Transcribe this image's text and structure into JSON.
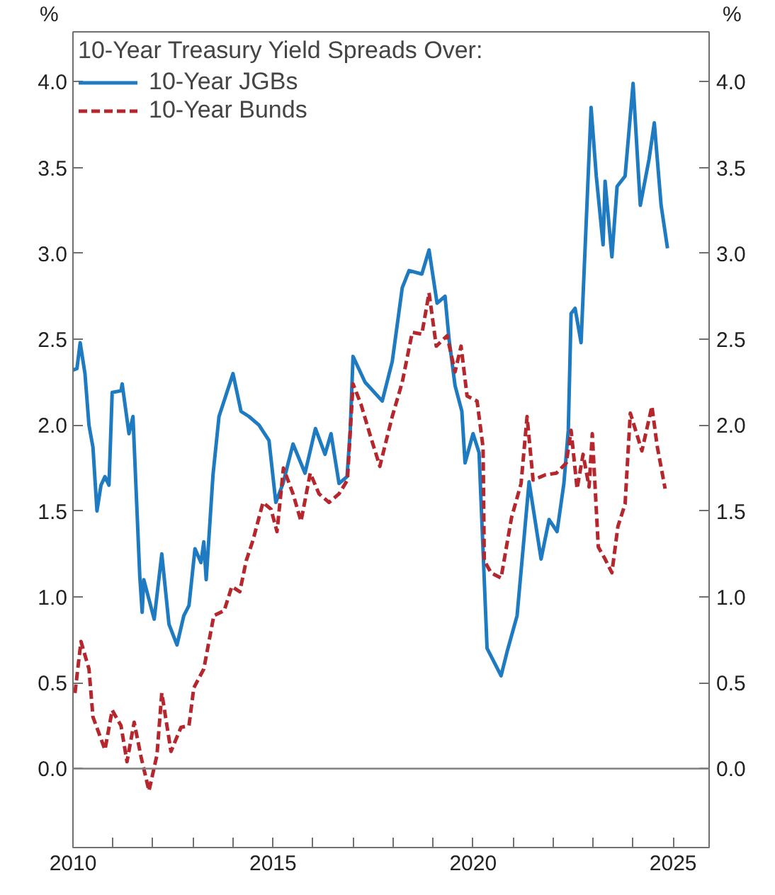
{
  "chart_data": {
    "type": "line",
    "legend_title": "10-Year Treasury Yield Spreads Over:",
    "ylabel": "%",
    "y2label": "%",
    "legend": "top left",
    "grid": false,
    "xlim": [
      2010,
      2025.9
    ],
    "xticks": [
      {
        "value": 2010,
        "label": "2010"
      },
      {
        "value": 2011,
        "label": null
      },
      {
        "value": 2012,
        "label": null
      },
      {
        "value": 2013,
        "label": null
      },
      {
        "value": 2014,
        "label": null
      },
      {
        "value": 2015,
        "label": "2015"
      },
      {
        "value": 2016,
        "label": null
      },
      {
        "value": 2017,
        "label": null
      },
      {
        "value": 2018,
        "label": null
      },
      {
        "value": 2019,
        "label": null
      },
      {
        "value": 2020,
        "label": "2020"
      },
      {
        "value": 2021,
        "label": null
      },
      {
        "value": 2022,
        "label": null
      },
      {
        "value": 2023,
        "label": null
      },
      {
        "value": 2024,
        "label": null
      },
      {
        "value": 2025,
        "label": "2025"
      }
    ],
    "ylim": [
      -0.46,
      4.29
    ],
    "yticks": [
      {
        "value": 0,
        "label": "0.0"
      },
      {
        "value": 0.5,
        "label": "0.5"
      },
      {
        "value": 1,
        "label": "1.0"
      },
      {
        "value": 1.5,
        "label": "1.5"
      },
      {
        "value": 2,
        "label": "2.0"
      },
      {
        "value": 2.5,
        "label": "2.5"
      },
      {
        "value": 3,
        "label": "3.0"
      },
      {
        "value": 3.5,
        "label": "3.5"
      },
      {
        "value": 4,
        "label": "4.0"
      }
    ],
    "y2lim": [
      -0.46,
      4.29
    ],
    "y2ticks": [
      {
        "value": 0,
        "label": "0.0"
      },
      {
        "value": 0.5,
        "label": "0.5"
      },
      {
        "value": 1,
        "label": "1.0"
      },
      {
        "value": 1.5,
        "label": "1.5"
      },
      {
        "value": 2,
        "label": "2.0"
      },
      {
        "value": 2.5,
        "label": "2.5"
      },
      {
        "value": 3,
        "label": "3.0"
      },
      {
        "value": 3.5,
        "label": "3.5"
      },
      {
        "value": 4,
        "label": "4.0"
      }
    ],
    "ref_lines": [
      {
        "axis": "y",
        "value": 0,
        "label": null,
        "color": "#808080"
      }
    ],
    "series": [
      {
        "name": "10-Year JGBs",
        "color": "#1f7bc1",
        "line_style": "solid",
        "x": [
          2010.0,
          2010.1,
          2010.18,
          2010.3,
          2010.4,
          2010.5,
          2010.6,
          2010.7,
          2010.8,
          2010.9,
          2010.98,
          2011.2,
          2011.23,
          2011.4,
          2011.5,
          2011.67,
          2011.73,
          2011.77,
          2012.03,
          2012.22,
          2012.4,
          2012.6,
          2012.77,
          2012.9,
          2013.05,
          2013.2,
          2013.27,
          2013.33,
          2013.5,
          2013.65,
          2014.0,
          2014.2,
          2014.4,
          2014.65,
          2014.9,
          2015.07,
          2015.25,
          2015.5,
          2015.8,
          2016.06,
          2016.3,
          2016.45,
          2016.65,
          2016.85,
          2016.93,
          2017.0,
          2017.3,
          2017.73,
          2017.98,
          2018.23,
          2018.4,
          2018.72,
          2018.9,
          2019.1,
          2019.3,
          2019.4,
          2019.55,
          2019.72,
          2019.8,
          2020.0,
          2020.15,
          2020.35,
          2020.7,
          2020.85,
          2021.1,
          2021.4,
          2021.7,
          2021.9,
          2022.1,
          2022.27,
          2022.38,
          2022.45,
          2022.55,
          2022.7,
          2022.95,
          2023.08,
          2023.25,
          2023.3,
          2023.47,
          2023.6,
          2023.8,
          2024.0,
          2024.18,
          2024.4,
          2024.53,
          2024.7,
          2024.86
        ],
        "values": [
          2.32,
          2.33,
          2.48,
          2.3,
          2.0,
          1.87,
          1.5,
          1.65,
          1.7,
          1.65,
          2.19,
          2.2,
          2.24,
          1.95,
          2.05,
          1.12,
          0.91,
          1.1,
          0.87,
          1.25,
          0.84,
          0.72,
          0.89,
          0.95,
          1.28,
          1.2,
          1.32,
          1.1,
          1.71,
          2.05,
          2.3,
          2.08,
          2.05,
          2.0,
          1.91,
          1.55,
          1.66,
          1.89,
          1.72,
          1.98,
          1.83,
          1.95,
          1.66,
          1.7,
          1.97,
          2.4,
          2.25,
          2.14,
          2.37,
          2.8,
          2.9,
          2.88,
          3.02,
          2.71,
          2.75,
          2.5,
          2.23,
          2.08,
          1.78,
          1.95,
          1.84,
          0.7,
          0.54,
          0.68,
          0.89,
          1.67,
          1.22,
          1.45,
          1.38,
          1.66,
          1.97,
          2.65,
          2.68,
          2.48,
          3.85,
          3.45,
          3.05,
          3.42,
          2.98,
          3.39,
          3.45,
          3.99,
          3.28,
          3.55,
          3.76,
          3.28,
          3.03
        ]
      },
      {
        "name": "10-Year Bunds",
        "color": "#b5272d",
        "line_style": "dashed",
        "x": [
          2010.05,
          2010.2,
          2010.4,
          2010.5,
          2010.8,
          2010.98,
          2011.2,
          2011.35,
          2011.53,
          2011.7,
          2011.9,
          2012.1,
          2012.22,
          2012.45,
          2012.7,
          2012.9,
          2013.02,
          2013.27,
          2013.52,
          2013.78,
          2013.97,
          2014.17,
          2014.33,
          2014.5,
          2014.75,
          2014.95,
          2015.1,
          2015.26,
          2015.5,
          2015.7,
          2015.93,
          2016.15,
          2016.4,
          2016.65,
          2016.86,
          2017.0,
          2017.2,
          2017.43,
          2017.67,
          2017.98,
          2018.23,
          2018.48,
          2018.72,
          2018.9,
          2019.08,
          2019.35,
          2019.55,
          2019.7,
          2019.85,
          2020.1,
          2020.25,
          2020.28,
          2020.45,
          2020.7,
          2020.96,
          2021.2,
          2021.35,
          2021.5,
          2021.8,
          2022.08,
          2022.33,
          2022.45,
          2022.6,
          2022.75,
          2022.9,
          2022.98,
          2023.13,
          2023.3,
          2023.47,
          2023.62,
          2023.8,
          2023.93,
          2024.22,
          2024.47,
          2024.6,
          2024.8
        ],
        "values": [
          0.44,
          0.74,
          0.58,
          0.3,
          0.11,
          0.34,
          0.25,
          0.04,
          0.27,
          0.07,
          -0.13,
          0.08,
          0.44,
          0.1,
          0.24,
          0.25,
          0.47,
          0.58,
          0.89,
          0.92,
          1.06,
          1.03,
          1.21,
          1.33,
          1.55,
          1.51,
          1.38,
          1.75,
          1.6,
          1.44,
          1.72,
          1.6,
          1.55,
          1.6,
          1.68,
          2.24,
          2.12,
          1.94,
          1.76,
          2.05,
          2.25,
          2.54,
          2.53,
          2.77,
          2.46,
          2.52,
          2.31,
          2.46,
          2.17,
          2.14,
          1.87,
          1.21,
          1.14,
          1.11,
          1.46,
          1.66,
          2.05,
          1.68,
          1.71,
          1.72,
          1.78,
          1.97,
          1.63,
          1.83,
          1.64,
          1.95,
          1.29,
          1.22,
          1.14,
          1.41,
          1.54,
          2.07,
          1.85,
          2.11,
          1.88,
          1.63
        ]
      }
    ]
  }
}
